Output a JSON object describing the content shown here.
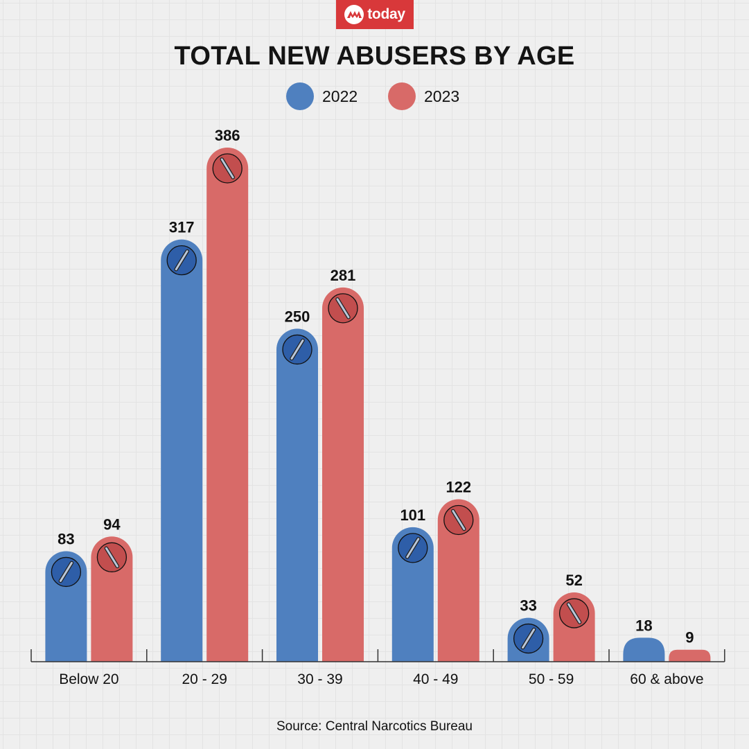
{
  "brand": {
    "name": "today",
    "color": "#d8383a"
  },
  "source": "Source: Central Narcotics Bureau",
  "chart_data": {
    "type": "bar",
    "title": "TOTAL NEW ABUSERS BY AGE",
    "xlabel": "",
    "ylabel": "",
    "categories": [
      "Below 20",
      "20 - 29",
      "30 - 39",
      "40 - 49",
      "50 - 59",
      "60 & above"
    ],
    "series": [
      {
        "name": "2022",
        "color": "#4f80bf",
        "icon_color": "#2e5ea8",
        "values": [
          83,
          317,
          250,
          101,
          33,
          18
        ]
      },
      {
        "name": "2023",
        "color": "#d86a68",
        "icon_color": "#c24e4e",
        "values": [
          94,
          386,
          281,
          122,
          52,
          9
        ]
      }
    ],
    "ylim": [
      0,
      386
    ],
    "grid": false,
    "legend": "top-center",
    "data_labels": true
  }
}
